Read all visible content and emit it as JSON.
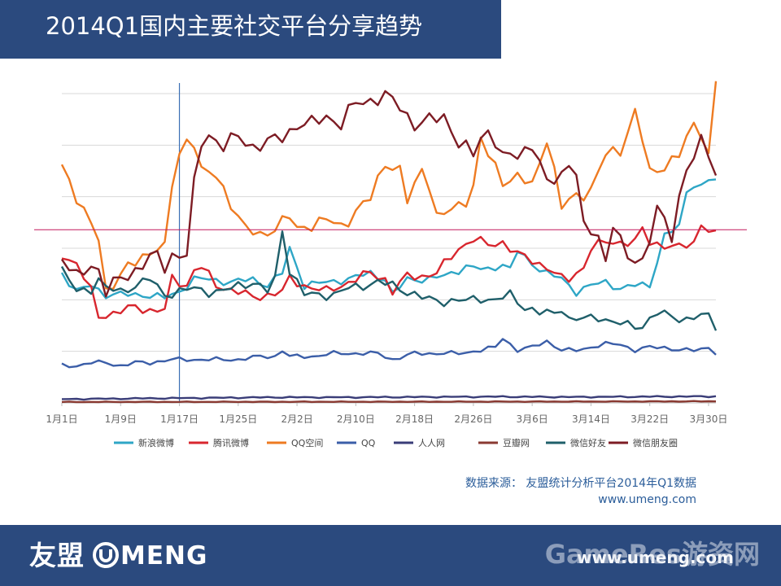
{
  "header": {
    "title": "2014Q1国内主要社交平台分享趋势"
  },
  "source": {
    "line1": "数据来源： 友盟统计分析平台2014年Q1数据",
    "line2": "www.umeng.com"
  },
  "footer": {
    "logo_cn": "友盟",
    "logo_en": "MENG",
    "logo_icon": "umeng-u-icon",
    "url": "www.umeng.com",
    "watermark": "GameRes游资网"
  },
  "colors": {
    "header_bg": "#2b4a7e",
    "footer_bg": "#2b4a7e",
    "reference_line": "#c2185b",
    "cursor_line": "#3a6fb5"
  },
  "chart_data": {
    "type": "line",
    "x_ticks": [
      "1月1日",
      "1月9日",
      "1月17日",
      "1月25日",
      "2月2日",
      "2月10日",
      "2月18日",
      "2月26日",
      "3月6日",
      "3月14日",
      "3月22日",
      "3月30日"
    ],
    "x_tick_days": [
      1,
      9,
      17,
      25,
      33,
      41,
      49,
      57,
      65,
      73,
      81,
      89
    ],
    "days": 90,
    "ylim": [
      0,
      100
    ],
    "grid": true,
    "y_tick_labels_visible": false,
    "legend_position": "bottom",
    "cursor_day": 17,
    "reference_value": 56,
    "series": [
      {
        "name": "新浪微博",
        "color": "#2ea6c6",
        "anchors": [
          [
            1,
            42
          ],
          [
            3,
            36
          ],
          [
            5,
            38
          ],
          [
            7,
            35
          ],
          [
            9,
            35
          ],
          [
            12,
            35
          ],
          [
            15,
            34
          ],
          [
            17,
            36
          ],
          [
            19,
            40
          ],
          [
            21,
            40
          ],
          [
            24,
            39
          ],
          [
            27,
            40
          ],
          [
            29,
            38
          ],
          [
            31,
            42
          ],
          [
            32,
            50
          ],
          [
            34,
            38
          ],
          [
            37,
            39
          ],
          [
            40,
            40
          ],
          [
            43,
            42
          ],
          [
            45,
            40
          ],
          [
            46,
            35
          ],
          [
            48,
            40
          ],
          [
            51,
            40
          ],
          [
            53,
            41
          ],
          [
            56,
            44
          ],
          [
            59,
            43
          ],
          [
            61,
            45
          ],
          [
            62,
            43
          ],
          [
            63,
            49
          ],
          [
            65,
            45
          ],
          [
            67,
            42
          ],
          [
            69,
            40
          ],
          [
            71,
            36
          ],
          [
            73,
            38
          ],
          [
            75,
            39
          ],
          [
            77,
            37
          ],
          [
            79,
            38
          ],
          [
            81,
            38
          ],
          [
            83,
            54
          ],
          [
            85,
            57
          ],
          [
            86,
            68
          ],
          [
            87,
            71
          ],
          [
            88,
            70
          ],
          [
            89,
            72
          ],
          [
            90,
            72
          ]
        ],
        "noise": 1.4
      },
      {
        "name": "腾讯微博",
        "color": "#d8262e",
        "anchors": [
          [
            1,
            48
          ],
          [
            3,
            45
          ],
          [
            5,
            36
          ],
          [
            6,
            28
          ],
          [
            8,
            29
          ],
          [
            11,
            31
          ],
          [
            13,
            30
          ],
          [
            15,
            30
          ],
          [
            16,
            40
          ],
          [
            18,
            38
          ],
          [
            19,
            43
          ],
          [
            20,
            44
          ],
          [
            22,
            38
          ],
          [
            25,
            36
          ],
          [
            27,
            34
          ],
          [
            29,
            35
          ],
          [
            31,
            36
          ],
          [
            32,
            40
          ],
          [
            34,
            38
          ],
          [
            37,
            36
          ],
          [
            39,
            38
          ],
          [
            41,
            40
          ],
          [
            43,
            42
          ],
          [
            45,
            40
          ],
          [
            46,
            36
          ],
          [
            48,
            41
          ],
          [
            50,
            41
          ],
          [
            52,
            42
          ],
          [
            55,
            50
          ],
          [
            57,
            53
          ],
          [
            59,
            51
          ],
          [
            61,
            52
          ],
          [
            63,
            48
          ],
          [
            65,
            46
          ],
          [
            67,
            44
          ],
          [
            69,
            40
          ],
          [
            70,
            40
          ],
          [
            72,
            44
          ],
          [
            73,
            50
          ],
          [
            75,
            52
          ],
          [
            77,
            52
          ],
          [
            79,
            52
          ],
          [
            80,
            56
          ],
          [
            81,
            52
          ],
          [
            83,
            51
          ],
          [
            85,
            50
          ],
          [
            87,
            52
          ],
          [
            88,
            58
          ],
          [
            89,
            56
          ],
          [
            90,
            54
          ]
        ],
        "noise": 1.8
      },
      {
        "name": "QQ空间",
        "color": "#ee7b22",
        "anchors": [
          [
            1,
            77
          ],
          [
            3,
            67
          ],
          [
            5,
            57
          ],
          [
            6,
            53
          ],
          [
            7,
            36
          ],
          [
            9,
            42
          ],
          [
            11,
            45
          ],
          [
            13,
            49
          ],
          [
            14,
            51
          ],
          [
            15,
            50
          ],
          [
            16,
            70
          ],
          [
            17,
            80
          ],
          [
            18,
            85
          ],
          [
            19,
            85
          ],
          [
            20,
            75
          ],
          [
            22,
            73
          ],
          [
            24,
            65
          ],
          [
            26,
            56
          ],
          [
            28,
            54
          ],
          [
            30,
            57
          ],
          [
            32,
            60
          ],
          [
            33,
            56
          ],
          [
            35,
            58
          ],
          [
            37,
            59
          ],
          [
            39,
            57
          ],
          [
            41,
            62
          ],
          [
            43,
            66
          ],
          [
            45,
            78
          ],
          [
            47,
            75
          ],
          [
            48,
            65
          ],
          [
            49,
            70
          ],
          [
            50,
            76
          ],
          [
            51,
            71
          ],
          [
            52,
            60
          ],
          [
            54,
            62
          ],
          [
            56,
            66
          ],
          [
            57,
            70
          ],
          [
            58,
            85
          ],
          [
            59,
            80
          ],
          [
            61,
            72
          ],
          [
            63,
            73
          ],
          [
            65,
            70
          ],
          [
            67,
            86
          ],
          [
            68,
            75
          ],
          [
            69,
            63
          ],
          [
            71,
            67
          ],
          [
            73,
            69
          ],
          [
            75,
            80
          ],
          [
            77,
            82
          ],
          [
            79,
            94
          ],
          [
            80,
            85
          ],
          [
            81,
            74
          ],
          [
            83,
            77
          ],
          [
            85,
            80
          ],
          [
            87,
            90
          ],
          [
            88,
            88
          ],
          [
            89,
            80
          ],
          [
            90,
            104
          ]
        ],
        "noise": 2.6
      },
      {
        "name": "QQ",
        "color": "#3b5ea8",
        "anchors": [
          [
            1,
            12
          ],
          [
            3,
            12
          ],
          [
            5,
            13
          ],
          [
            7,
            13
          ],
          [
            9,
            12
          ],
          [
            11,
            13
          ],
          [
            13,
            13
          ],
          [
            16,
            14
          ],
          [
            19,
            14
          ],
          [
            22,
            14
          ],
          [
            25,
            14
          ],
          [
            28,
            15
          ],
          [
            30,
            15
          ],
          [
            31,
            17
          ],
          [
            32,
            15
          ],
          [
            35,
            15
          ],
          [
            38,
            16
          ],
          [
            41,
            16
          ],
          [
            44,
            16
          ],
          [
            46,
            14
          ],
          [
            49,
            16
          ],
          [
            52,
            16
          ],
          [
            55,
            16
          ],
          [
            58,
            17
          ],
          [
            60,
            18
          ],
          [
            61,
            21
          ],
          [
            63,
            17
          ],
          [
            65,
            18
          ],
          [
            67,
            20
          ],
          [
            69,
            17
          ],
          [
            71,
            17
          ],
          [
            73,
            18
          ],
          [
            75,
            19
          ],
          [
            77,
            19
          ],
          [
            79,
            17
          ],
          [
            81,
            18
          ],
          [
            83,
            18
          ],
          [
            85,
            17
          ],
          [
            87,
            17
          ],
          [
            89,
            18
          ],
          [
            90,
            16
          ]
        ],
        "noise": 0.8
      },
      {
        "name": "人人网",
        "color": "#3a3d78",
        "anchors": [
          [
            1,
            1.2
          ],
          [
            10,
            1.4
          ],
          [
            20,
            1.6
          ],
          [
            30,
            1.8
          ],
          [
            40,
            1.8
          ],
          [
            50,
            1.9
          ],
          [
            60,
            2.0
          ],
          [
            70,
            1.9
          ],
          [
            80,
            2.0
          ],
          [
            90,
            2.1
          ]
        ],
        "noise": 0.25
      },
      {
        "name": "豆瓣网",
        "color": "#8a3a32",
        "anchors": [
          [
            1,
            0.3
          ],
          [
            30,
            0.35
          ],
          [
            60,
            0.4
          ],
          [
            90,
            0.5
          ]
        ],
        "noise": 0.12
      },
      {
        "name": "微信好友",
        "color": "#1f5f6a",
        "anchors": [
          [
            1,
            43
          ],
          [
            3,
            36
          ],
          [
            5,
            37
          ],
          [
            6,
            40
          ],
          [
            7,
            37
          ],
          [
            9,
            36
          ],
          [
            11,
            38
          ],
          [
            13,
            40
          ],
          [
            15,
            35
          ],
          [
            17,
            36
          ],
          [
            19,
            37
          ],
          [
            21,
            36
          ],
          [
            23,
            36
          ],
          [
            25,
            38
          ],
          [
            27,
            39
          ],
          [
            29,
            36
          ],
          [
            30,
            40
          ],
          [
            31,
            56
          ],
          [
            32,
            43
          ],
          [
            34,
            35
          ],
          [
            36,
            35
          ],
          [
            38,
            35
          ],
          [
            40,
            37
          ],
          [
            42,
            38
          ],
          [
            44,
            39
          ],
          [
            46,
            38
          ],
          [
            48,
            36
          ],
          [
            50,
            34
          ],
          [
            52,
            33
          ],
          [
            54,
            33
          ],
          [
            56,
            33
          ],
          [
            58,
            34
          ],
          [
            60,
            33
          ],
          [
            62,
            35
          ],
          [
            64,
            31
          ],
          [
            66,
            29
          ],
          [
            68,
            29
          ],
          [
            69,
            31
          ],
          [
            70,
            27
          ],
          [
            72,
            27
          ],
          [
            74,
            28
          ],
          [
            76,
            26
          ],
          [
            78,
            25
          ],
          [
            80,
            25
          ],
          [
            82,
            29
          ],
          [
            84,
            28
          ],
          [
            86,
            27
          ],
          [
            88,
            28
          ],
          [
            89,
            28
          ],
          [
            90,
            25
          ]
        ],
        "noise": 1.8
      },
      {
        "name": "微信朋友圈",
        "color": "#7d1c24",
        "anchors": [
          [
            1,
            47
          ],
          [
            3,
            40
          ],
          [
            5,
            45
          ],
          [
            6,
            43
          ],
          [
            7,
            36
          ],
          [
            9,
            40
          ],
          [
            11,
            43
          ],
          [
            13,
            47
          ],
          [
            14,
            47
          ],
          [
            15,
            44
          ],
          [
            16,
            48
          ],
          [
            18,
            48
          ],
          [
            19,
            70
          ],
          [
            20,
            84
          ],
          [
            21,
            87
          ],
          [
            23,
            83
          ],
          [
            25,
            86
          ],
          [
            27,
            83
          ],
          [
            29,
            84
          ],
          [
            31,
            86
          ],
          [
            33,
            90
          ],
          [
            35,
            90
          ],
          [
            37,
            93
          ],
          [
            39,
            90
          ],
          [
            41,
            97
          ],
          [
            43,
            98
          ],
          [
            45,
            99
          ],
          [
            47,
            96
          ],
          [
            49,
            90
          ],
          [
            51,
            91
          ],
          [
            53,
            93
          ],
          [
            55,
            84
          ],
          [
            57,
            80
          ],
          [
            58,
            86
          ],
          [
            59,
            88
          ],
          [
            60,
            85
          ],
          [
            61,
            79
          ],
          [
            63,
            80
          ],
          [
            65,
            84
          ],
          [
            66,
            78
          ],
          [
            67,
            70
          ],
          [
            69,
            74
          ],
          [
            70,
            78
          ],
          [
            71,
            75
          ],
          [
            72,
            56
          ],
          [
            74,
            54
          ],
          [
            75,
            46
          ],
          [
            76,
            59
          ],
          [
            77,
            52
          ],
          [
            78,
            46
          ],
          [
            80,
            46
          ],
          [
            82,
            63
          ],
          [
            84,
            53
          ],
          [
            85,
            66
          ],
          [
            86,
            77
          ],
          [
            87,
            80
          ],
          [
            88,
            84
          ],
          [
            89,
            80
          ],
          [
            90,
            73
          ]
        ],
        "noise": 3.0
      }
    ]
  }
}
